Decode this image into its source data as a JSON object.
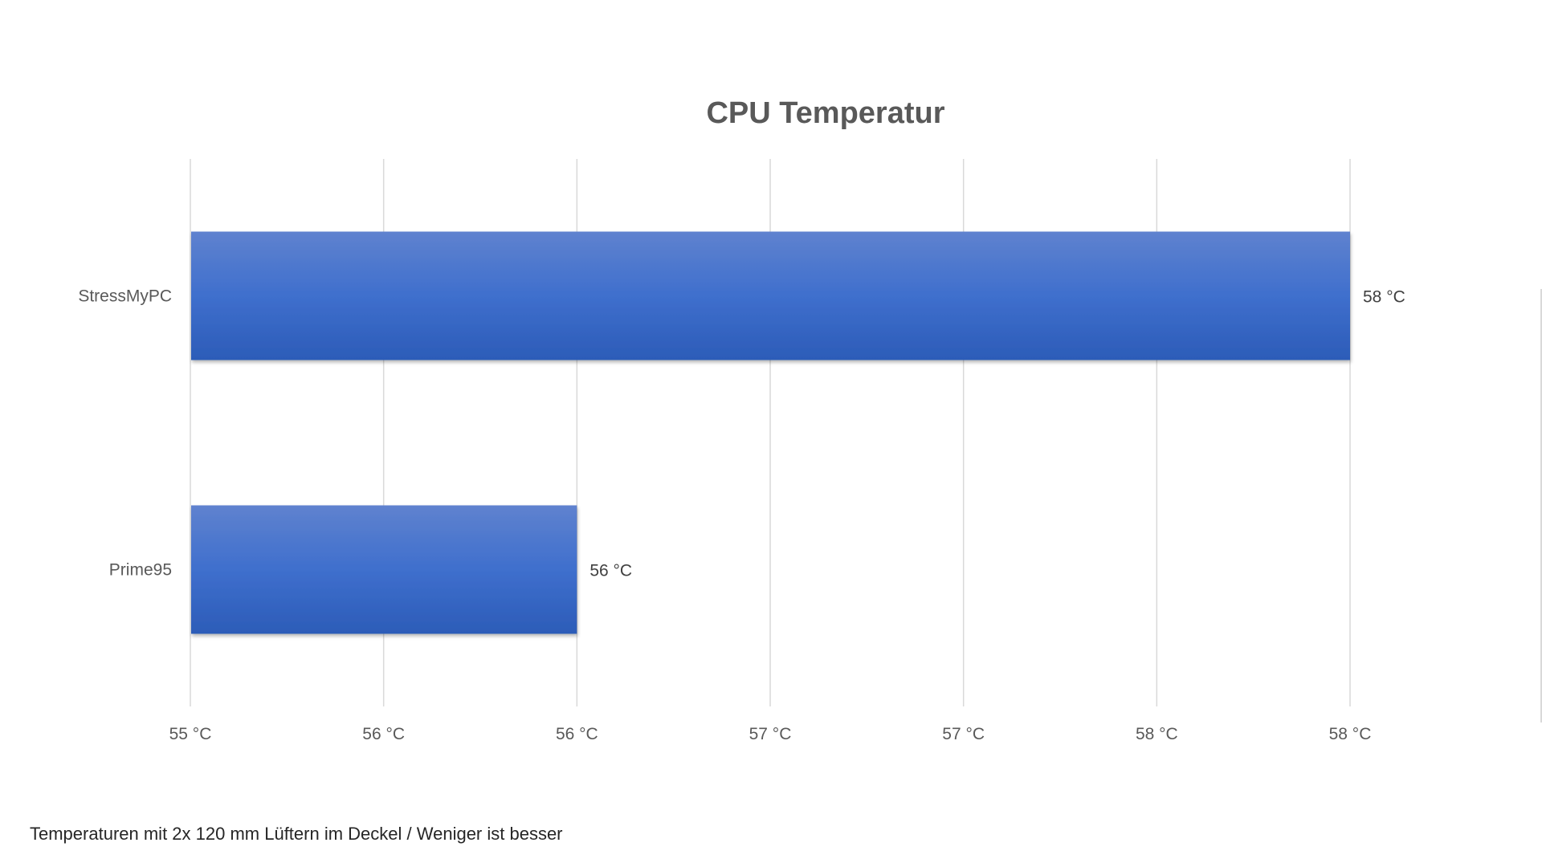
{
  "chart_data": {
    "type": "bar",
    "orientation": "horizontal",
    "title": "CPU Temperatur",
    "categories": [
      "StressMyPC",
      "Prime95"
    ],
    "values": [
      58,
      56
    ],
    "data_labels": [
      "58 °C",
      "56 °C"
    ],
    "xlim": [
      55,
      58
    ],
    "x_ticks": [
      55,
      55.5,
      56,
      56.5,
      57,
      57.5,
      58
    ],
    "x_tick_labels": [
      "55 °C",
      "56 °C",
      "56 °C",
      "57 °C",
      "57 °C",
      "58 °C",
      "58 °C"
    ],
    "xlabel": "",
    "ylabel": "",
    "grid": "vertical",
    "legend": "none",
    "colors": {
      "bar_top": "#5f82cf",
      "bar_mid": "#3f6fcd",
      "bar_bottom": "#2c5cb8",
      "grid": "#d9d9d9"
    }
  },
  "footnote": "Temperaturen mit 2x 120 mm Lüftern im Deckel / Weniger ist besser"
}
